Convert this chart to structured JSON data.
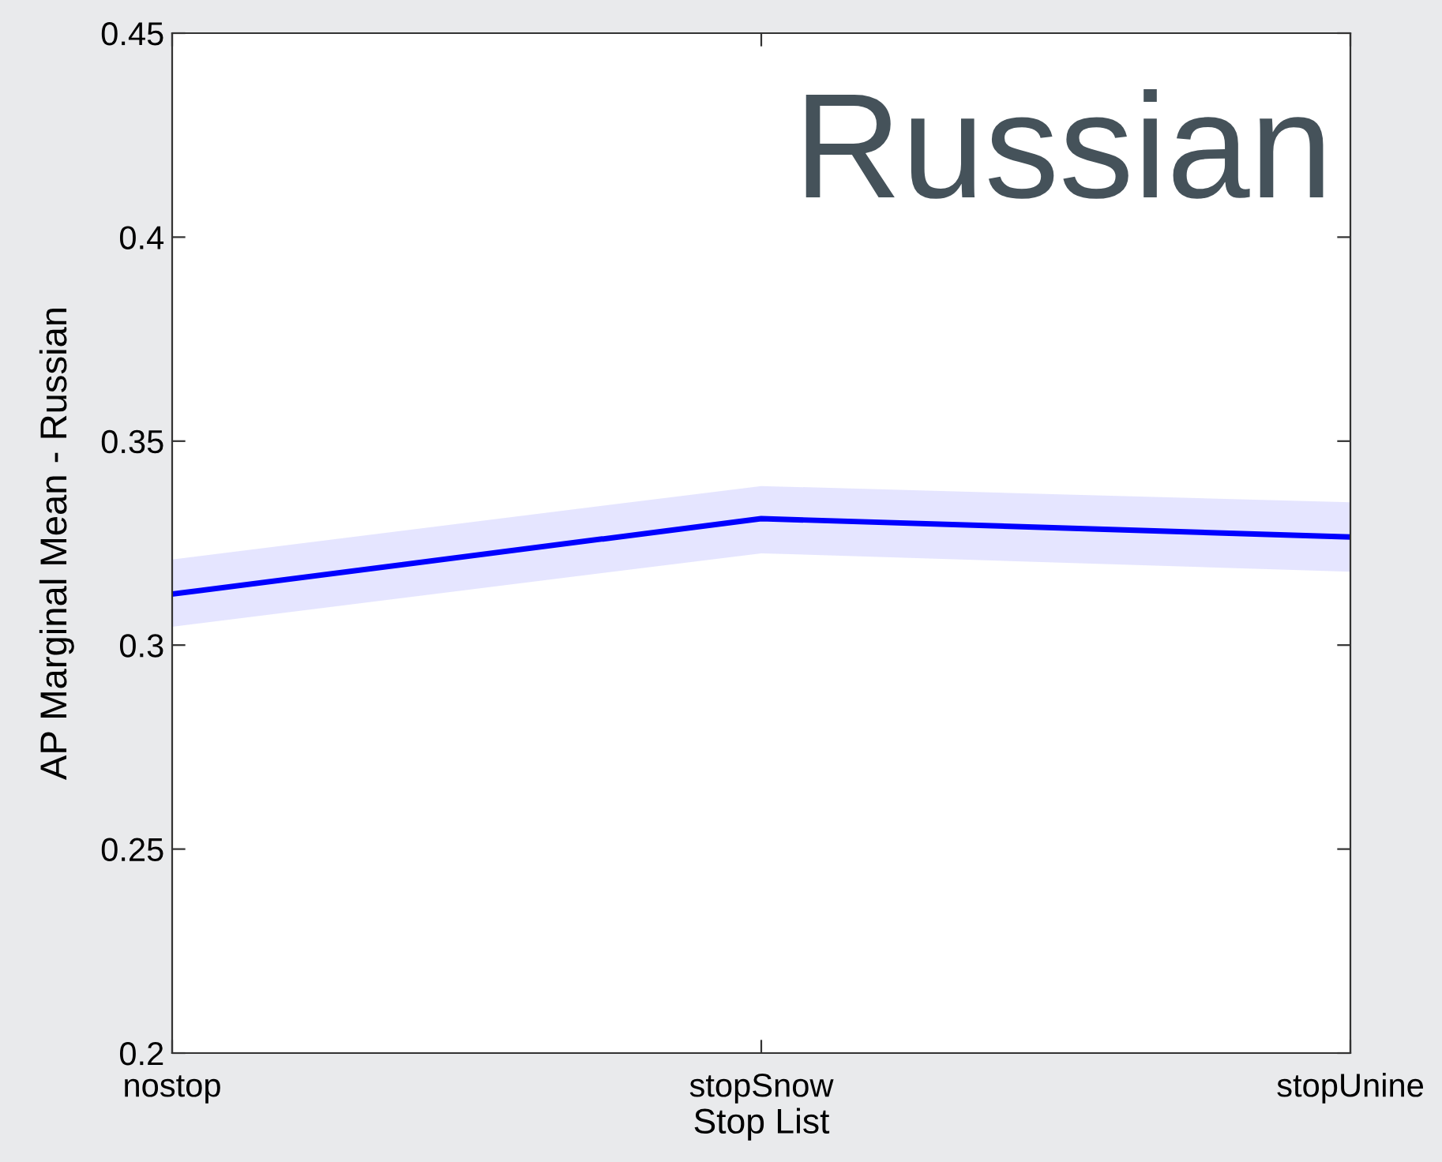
{
  "chart_data": {
    "type": "line",
    "title": "Russian",
    "xlabel": "Stop List",
    "ylabel": "AP Marginal Mean - Russian",
    "categories": [
      "nostop",
      "stopSnow",
      "stopUnine"
    ],
    "series": [
      {
        "color": "#0000ff",
        "values": [
          0.3125,
          0.331,
          0.3265
        ],
        "lower": [
          0.3045,
          0.3225,
          0.318
        ],
        "upper": [
          0.321,
          0.339,
          0.335
        ]
      }
    ],
    "ylim": [
      0.2,
      0.45
    ],
    "yticks": [
      0.2,
      0.25,
      0.3,
      0.35,
      0.4,
      0.45
    ],
    "grid": false,
    "marker": "none",
    "line_style": "solid"
  }
}
